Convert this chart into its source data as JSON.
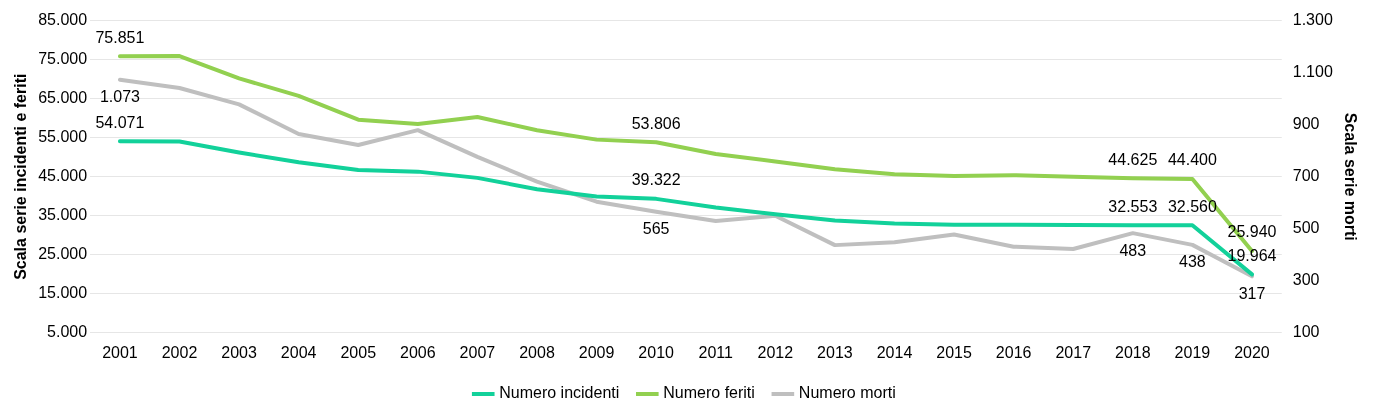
{
  "chart_data": {
    "type": "line",
    "categories": [
      "2001",
      "2002",
      "2003",
      "2004",
      "2005",
      "2006",
      "2007",
      "2008",
      "2009",
      "2010",
      "2011",
      "2012",
      "2013",
      "2014",
      "2015",
      "2016",
      "2017",
      "2018",
      "2019",
      "2020"
    ],
    "series": [
      {
        "name": "Numero incidenti",
        "color": "#12d19a",
        "values": [
          54071,
          54000,
          51200,
          48700,
          46700,
          46300,
          44700,
          41800,
          39900,
          39322,
          37100,
          35400,
          33800,
          33000,
          32700,
          32700,
          32600,
          32553,
          32560,
          19964
        ],
        "value_labels": [
          "54.071",
          null,
          null,
          null,
          null,
          null,
          null,
          null,
          null,
          "39.322",
          null,
          null,
          null,
          null,
          null,
          null,
          null,
          "32.553",
          "32.560",
          "19.964"
        ]
      },
      {
        "name": "Numero feriti",
        "color": "#92d050",
        "values": [
          75851,
          75900,
          70200,
          65700,
          59600,
          58500,
          60300,
          56900,
          54500,
          53806,
          50800,
          48900,
          46900,
          45600,
          45200,
          45400,
          45000,
          44625,
          44400,
          25940
        ],
        "value_labels": [
          "75.851",
          null,
          null,
          null,
          null,
          null,
          null,
          null,
          null,
          "53.806",
          null,
          null,
          null,
          null,
          null,
          null,
          null,
          "44.625",
          "44.400",
          "25.940"
        ]
      },
      {
        "name": "Numero morti",
        "color": "#bfbfbf",
        "axis": "y2",
        "values": [
          1073,
          1041,
          978,
          864,
          822,
          879,
          776,
          681,
          604,
          565,
          530,
          550,
          437,
          448,
          478,
          431,
          422,
          483,
          438,
          317
        ],
        "value_labels": [
          "1.073",
          null,
          null,
          null,
          null,
          null,
          null,
          null,
          null,
          "565",
          null,
          null,
          null,
          null,
          null,
          null,
          null,
          "483",
          "438",
          "317"
        ]
      }
    ],
    "ylabel": "Scala serie incidenti e feriti",
    "y2label": "Scala serie morti",
    "ylim": [
      5000,
      85000
    ],
    "yticks": [
      {
        "value": 5000,
        "label": "5.000"
      },
      {
        "value": 15000,
        "label": "15.000"
      },
      {
        "value": 25000,
        "label": "25.000"
      },
      {
        "value": 35000,
        "label": "35.000"
      },
      {
        "value": 45000,
        "label": "45.000"
      },
      {
        "value": 55000,
        "label": "55.000"
      },
      {
        "value": 65000,
        "label": "65.000"
      },
      {
        "value": 75000,
        "label": "75.000"
      },
      {
        "value": 85000,
        "label": "85.000"
      }
    ],
    "y2lim": [
      100,
      1300
    ],
    "y2ticks": [
      100,
      300,
      500,
      700,
      900,
      {
        "value": 1100,
        "label": "1.100"
      },
      {
        "value": 1300,
        "label": "1.300"
      }
    ],
    "grid": "y",
    "legend": "bottom",
    "marker": "none",
    "line_style": "solid"
  }
}
